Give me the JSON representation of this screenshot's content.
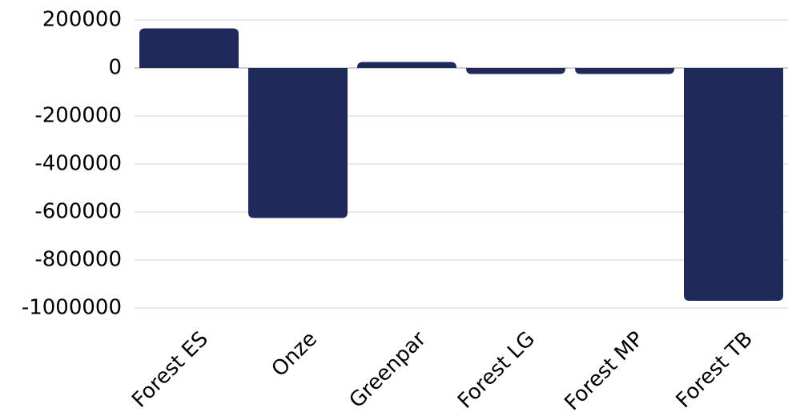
{
  "colors": {
    "bar": "#1f2a5a",
    "grid": "#d4d4d4",
    "text": "#000000"
  },
  "chart_data": {
    "type": "bar",
    "categories": [
      "Forest ES",
      "Onze",
      "Greenpar",
      "Forest LG",
      "Forest MP",
      "Forest TB"
    ],
    "values": [
      165000,
      -625000,
      25000,
      -25000,
      -25000,
      -970000
    ],
    "title": "",
    "xlabel": "",
    "ylabel": "",
    "ylim": [
      -1000000,
      200000
    ],
    "yticks": [
      200000,
      0,
      -200000,
      -400000,
      -600000,
      -800000,
      -1000000
    ],
    "ytick_labels": [
      "200000",
      "0",
      "-200000",
      "-400000",
      "-600000",
      "-800000",
      "-1000000"
    ],
    "grid": true,
    "legend": "none"
  }
}
